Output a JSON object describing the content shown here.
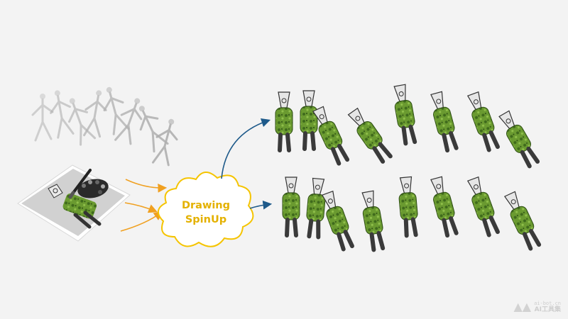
{
  "cloud": {
    "line1": "Drawing",
    "line2": "SpinUp"
  },
  "watermark": {
    "url": "ai-bot.cn",
    "brand": "AI工具集"
  },
  "colors": {
    "background": "#f3f3f3",
    "cloud_outline": "#f5c400",
    "cloud_text": "#e4b100",
    "orange_arrow": "#f0a020",
    "blue_arrow": "#1e5a8a",
    "character_green": "#5f8f2c",
    "character_legs": "#3a3a3a",
    "skeleton": "#b0b0b0"
  },
  "icons": [
    "skeleton-motion-icon",
    "drawing-paper-icon",
    "paint-palette-icon",
    "brush-icon",
    "animated-character-icon"
  ]
}
